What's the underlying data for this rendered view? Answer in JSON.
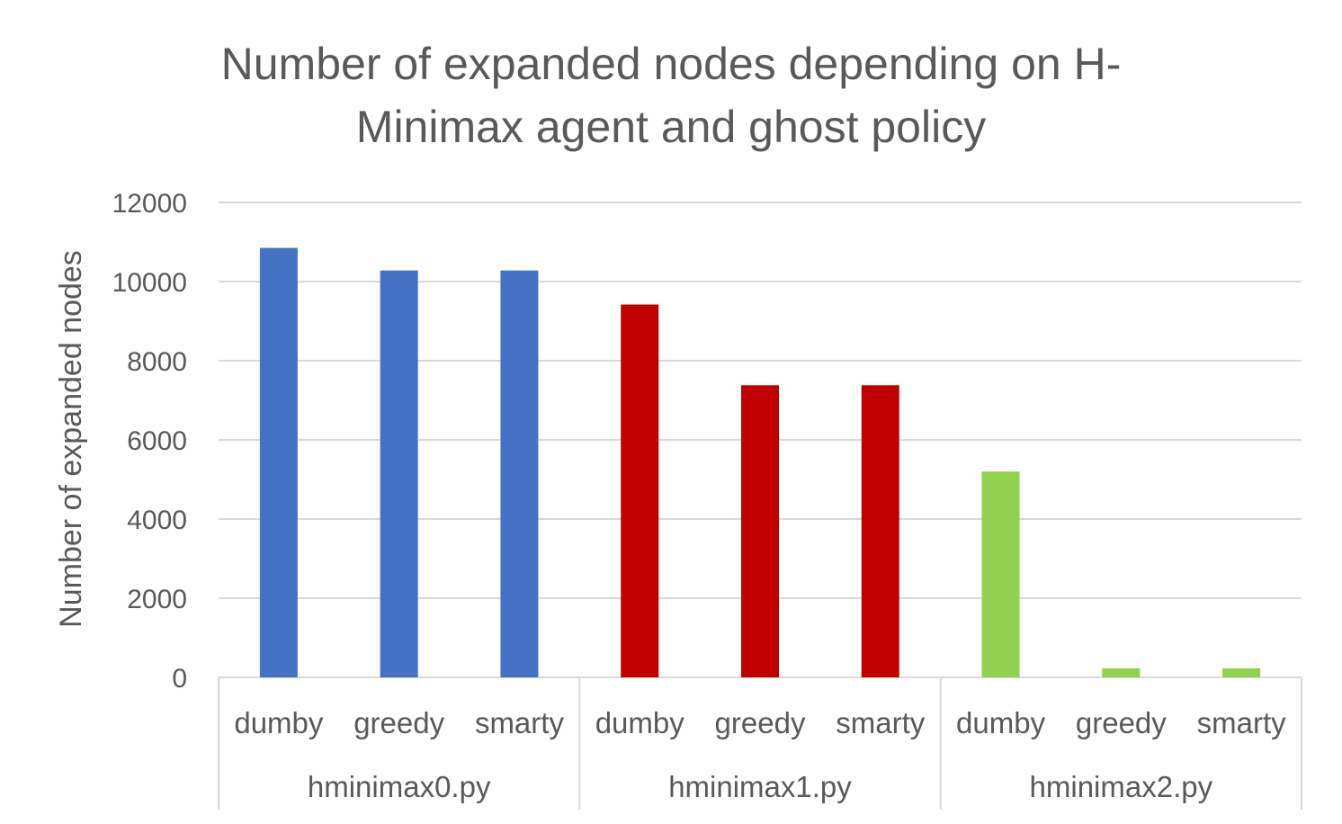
{
  "chart_data": {
    "type": "bar",
    "title_lines": [
      "Number of expanded nodes depending on H-",
      "Minimax agent and ghost policy"
    ],
    "xlabel": "",
    "ylabel": "Number of expanded nodes",
    "ylim": [
      0,
      12000
    ],
    "yticks": [
      0,
      2000,
      4000,
      6000,
      8000,
      10000,
      12000
    ],
    "grid": true,
    "legend": "none",
    "groups": [
      {
        "name": "hminimax0.py",
        "color": "#4472c4",
        "categories": [
          "dumby",
          "greedy",
          "smarty"
        ],
        "values": [
          10850,
          10280,
          10280
        ]
      },
      {
        "name": "hminimax1.py",
        "color": "#c00000",
        "categories": [
          "dumby",
          "greedy",
          "smarty"
        ],
        "values": [
          9420,
          7380,
          7380
        ]
      },
      {
        "name": "hminimax2.py",
        "color": "#92d050",
        "categories": [
          "dumby",
          "greedy",
          "smarty"
        ],
        "values": [
          5200,
          230,
          230
        ]
      }
    ]
  }
}
